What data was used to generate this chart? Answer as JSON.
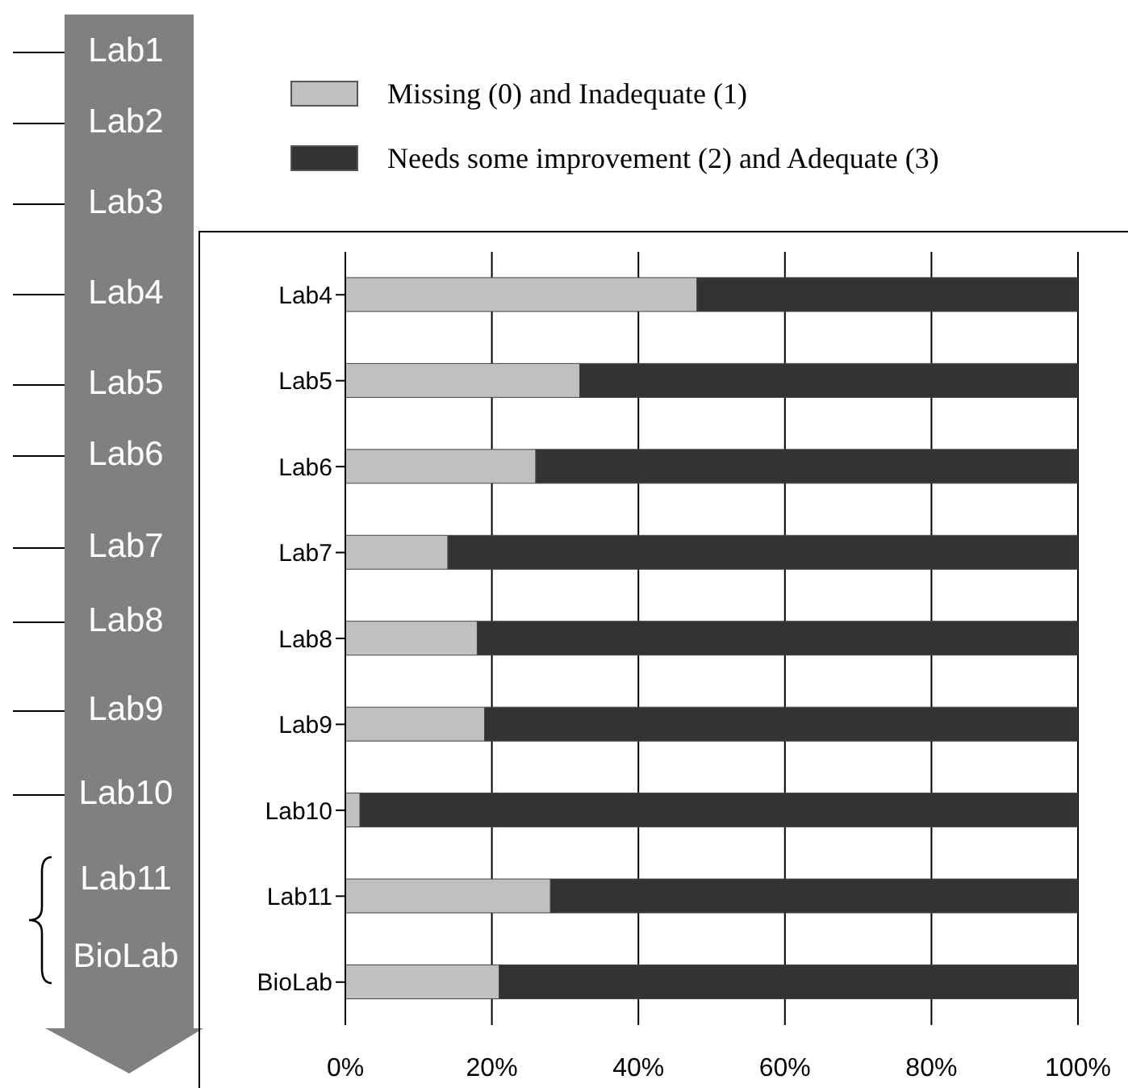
{
  "chart_data": {
    "type": "bar",
    "orientation": "horizontal",
    "stacked": true,
    "categories": [
      "Lab4",
      "Lab5",
      "Lab6",
      "Lab7",
      "Lab8",
      "Lab9",
      "Lab10",
      "Lab11",
      "BioLab"
    ],
    "series": [
      {
        "name": "Missing (0) and Inadequate (1)",
        "color": "#c0c0c0",
        "values": [
          48,
          32,
          26,
          14,
          18,
          19,
          2,
          28,
          21
        ]
      },
      {
        "name": "Needs some improvement (2) and Adequate (3)",
        "color": "#333333",
        "values": [
          52,
          68,
          74,
          86,
          82,
          81,
          98,
          72,
          79
        ]
      }
    ],
    "xlim": [
      0,
      100
    ],
    "xticks": [
      {
        "value": 0,
        "label": "0%"
      },
      {
        "value": 20,
        "label": "20%"
      },
      {
        "value": 40,
        "label": "40%"
      },
      {
        "value": 60,
        "label": "60%"
      },
      {
        "value": 80,
        "label": "80%"
      },
      {
        "value": 100,
        "label": "100%"
      }
    ],
    "grid": "x",
    "legend": "top",
    "annotations": [
      "Lab1",
      "Lab2",
      "Lab3",
      "Lab4",
      "Lab5",
      "Lab6",
      "Lab7",
      "Lab8",
      "Lab9",
      "Lab10",
      "Lab11",
      "BioLab"
    ]
  }
}
